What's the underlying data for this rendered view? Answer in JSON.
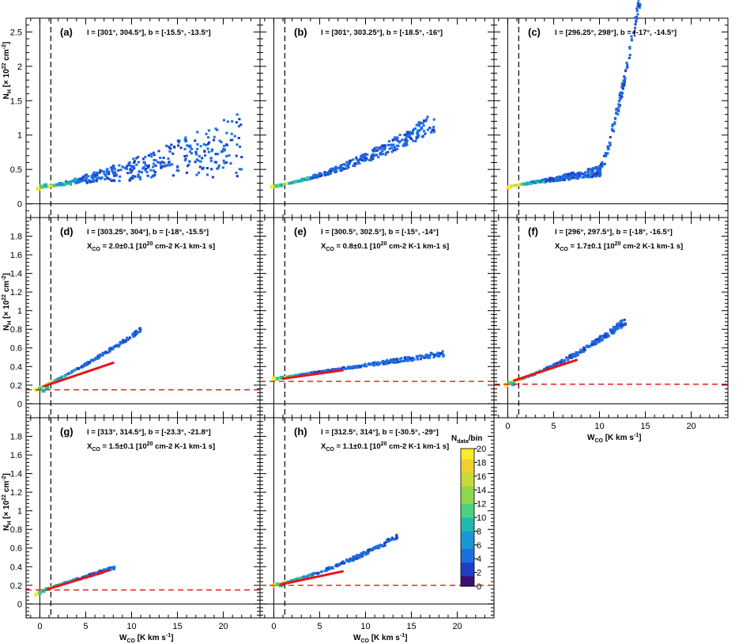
{
  "figure": {
    "y_title": "N_H [× 10^22 cm^-2]",
    "x_title": "W_CO [K km s^-1]",
    "y_title_parts": {
      "base": "N",
      "sub": "H",
      "mid": " [× 10",
      "sup": "22",
      "end": " cm",
      "sup2": "-2",
      "close": "]"
    },
    "x_title_parts": {
      "base": "W",
      "sub": "CO",
      "mid": " [K km s",
      "sup": "-1",
      "close": "]"
    }
  },
  "colorbar": {
    "title": "N_data/bin",
    "title_parts": {
      "base": "N",
      "sub": "data",
      "end": "/bin"
    },
    "range": [
      0,
      20
    ],
    "ticks": [
      "0",
      "2",
      "4",
      "6",
      "8",
      "10",
      "12",
      "14",
      "16",
      "18",
      "20"
    ],
    "colors": [
      "#3b0f70",
      "#1f3fc5",
      "#1d6fe0",
      "#1b96d4",
      "#1fb8b0",
      "#4ccf7f",
      "#8fd64d",
      "#c8d93a",
      "#f0cf2e",
      "#fce92a"
    ]
  },
  "chart_data": [
    {
      "id": "a",
      "type": "heatmap",
      "panel_label": "(a)",
      "range_text": "l = [301°, 304.5°],  b = [-15.5°, -13.5°]",
      "xlim": [
        -1.5,
        24
      ],
      "ylim": [
        -0.2,
        2.7
      ],
      "yticks": [
        "0",
        "0.5",
        "1",
        "1.5",
        "2",
        "2.5"
      ],
      "ytick_values": [
        0,
        0.5,
        1,
        1.5,
        2,
        2.5
      ],
      "xticks": [],
      "threshold_x": 1.2,
      "scatter": {
        "seed": 11,
        "n": 430,
        "x_max": 22,
        "base": 0.23,
        "slope": 0.022,
        "spread": 0.6,
        "spread_pow": 1.4,
        "curve": 0
      },
      "dense_core": [
        [
          -0.2,
          0.22
        ],
        [
          0.2,
          0.25
        ],
        [
          0.6,
          0.27
        ]
      ]
    },
    {
      "id": "b",
      "type": "heatmap",
      "panel_label": "(b)",
      "range_text": "l = [301°, 303.25°],  b = [-18.5°, -16°]",
      "xlim": [
        -1.5,
        24
      ],
      "ylim": [
        -0.2,
        2.7
      ],
      "yticks": [],
      "ytick_values": [
        0,
        0.5,
        1,
        1.5,
        2,
        2.5
      ],
      "xticks": [],
      "threshold_x": 1.2,
      "scatter": {
        "seed": 23,
        "n": 380,
        "x_max": 17.5,
        "base": 0.25,
        "slope": 0.025,
        "spread": 0.18,
        "spread_pow": 1.3,
        "curve": 0.0015
      },
      "dense_core": [
        [
          -0.2,
          0.25
        ],
        [
          0.3,
          0.26
        ],
        [
          0.8,
          0.27
        ]
      ]
    },
    {
      "id": "c",
      "type": "heatmap",
      "panel_label": "(c)",
      "range_text": "l = [296.25°, 298°],  b = [-17°, -14.5°]",
      "xlim": [
        -1.5,
        24
      ],
      "ylim": [
        -0.2,
        2.7
      ],
      "yticks": [],
      "ytick_values": [
        0,
        0.5,
        1,
        1.5,
        2,
        2.5
      ],
      "xticks": [],
      "threshold_x": 1.2,
      "scatter": {
        "seed": 37,
        "n": 420,
        "x_max": 15,
        "base": 0.25,
        "slope": 0.02,
        "spread": 0.15,
        "spread_pow": 1.2,
        "curve": 0,
        "rise_from": 10,
        "rise_rate": 0.35
      },
      "dense_core": [
        [
          0.2,
          0.24
        ]
      ]
    },
    {
      "id": "d",
      "type": "heatmap",
      "panel_label": "(d)",
      "range_text": "l = [303.25°, 304°],  b = [-18°, -15.5°]",
      "xco_text": "X_CO = 2.0±0.1 [10^20 cm^-2 K^-1 km^-1 s]",
      "xco_parts": {
        "base": "X",
        "sub": "CO",
        "val": " = 2.0±0.1 [10",
        "sup": "20",
        "unit": " cm-2 K-1 km-1 s]"
      },
      "xlim": [
        -1.5,
        24
      ],
      "ylim": [
        -0.15,
        2.0
      ],
      "yticks": [
        "0",
        "0.2",
        "0.4",
        "0.6",
        "0.8",
        "1",
        "1.2",
        "1.4",
        "1.6",
        "1.8"
      ],
      "ytick_values": [
        0,
        0.2,
        0.4,
        0.6,
        0.8,
        1.0,
        1.2,
        1.4,
        1.6,
        1.8
      ],
      "xticks": [],
      "threshold_x": 1.2,
      "offset_y": 0.15,
      "fit": {
        "x0": 0.5,
        "y0": 0.19,
        "x1": 8.0,
        "y1": 0.44
      },
      "scatter": {
        "seed": 41,
        "n": 210,
        "x_max": 11,
        "base": 0.17,
        "slope": 0.045,
        "spread": 0.05,
        "spread_pow": 1.0,
        "curve": 0.001
      },
      "dense_core": [
        [
          -0.4,
          0.15
        ],
        [
          0.0,
          0.16
        ],
        [
          0.4,
          0.14
        ],
        [
          0.8,
          0.17
        ]
      ]
    },
    {
      "id": "e",
      "type": "heatmap",
      "panel_label": "(e)",
      "range_text": "l = [300.5°, 302.5°],  b = [-15°, -14°]",
      "xco_text": "X_CO = 0.8±0.1 [10^20 cm^-2 K^-1 km^-1 s]",
      "xco_parts": {
        "base": "X",
        "sub": "CO",
        "val": " = 0.8±0.1 [10",
        "sup": "20",
        "unit": " cm-2 K-1 km-1 s]"
      },
      "xlim": [
        -1.5,
        24
      ],
      "ylim": [
        -0.15,
        2.0
      ],
      "yticks": [],
      "ytick_values": [
        0,
        0.2,
        0.4,
        0.6,
        0.8,
        1.0,
        1.2,
        1.4,
        1.6,
        1.8
      ],
      "xticks": [],
      "threshold_x": 1.2,
      "offset_y": 0.24,
      "fit": {
        "x0": 1.0,
        "y0": 0.27,
        "x1": 7.5,
        "y1": 0.36
      },
      "scatter": {
        "seed": 53,
        "n": 330,
        "x_max": 18.5,
        "base": 0.27,
        "slope": 0.014,
        "spread": 0.06,
        "spread_pow": 1.0,
        "curve": 0
      },
      "dense_core": [
        [
          0.0,
          0.27
        ],
        [
          0.4,
          0.27
        ],
        [
          0.9,
          0.28
        ]
      ]
    },
    {
      "id": "f",
      "type": "heatmap",
      "panel_label": "(f)",
      "range_text": "l = [296°, 297.5°],  b = [-18°, -16.5°]",
      "xco_text": "X_CO = 1.7±0.1 [10^20 cm^-2 K^-1 km^-1 s]",
      "xco_parts": {
        "base": "X",
        "sub": "CO",
        "val": " = 1.7±0.1 [10",
        "sup": "20",
        "unit": " cm-2 K-1 km-1 s]"
      },
      "xlim": [
        -1.5,
        24
      ],
      "ylim": [
        -0.15,
        2.0
      ],
      "yticks": [],
      "ytick_values": [
        0,
        0.2,
        0.4,
        0.6,
        0.8,
        1.0,
        1.2,
        1.4,
        1.6,
        1.8
      ],
      "xticks": [
        "0",
        "5",
        "10",
        "15",
        "20"
      ],
      "xtick_values": [
        0,
        5,
        10,
        15,
        20
      ],
      "show_xtitle": true,
      "threshold_x": 1.2,
      "offset_y": 0.21,
      "fit": {
        "x0": 0.7,
        "y0": 0.25,
        "x1": 7.5,
        "y1": 0.47
      },
      "scatter": {
        "seed": 67,
        "n": 260,
        "x_max": 13,
        "base": 0.22,
        "slope": 0.028,
        "spread": 0.08,
        "spread_pow": 1.0,
        "curve": 0.0018
      },
      "dense_core": [
        [
          -0.2,
          0.2
        ],
        [
          0.2,
          0.22
        ],
        [
          0.6,
          0.21
        ]
      ]
    },
    {
      "id": "g",
      "type": "heatmap",
      "panel_label": "(g)",
      "range_text": "l = [313°, 314.5°],  b = [-23.3°, -21.8°]",
      "xco_text": "X_CO = 1.5±0.1 [10^20 cm^-2 K^-1 km^-1 s]",
      "xco_parts": {
        "base": "X",
        "sub": "CO",
        "val": " = 1.5±0.1 [10",
        "sup": "20",
        "unit": " cm-2 K-1 km-1 s]"
      },
      "xlim": [
        -1.5,
        24
      ],
      "ylim": [
        -0.15,
        2.0
      ],
      "yticks": [
        "0",
        "0.2",
        "0.4",
        "0.6",
        "0.8",
        "1",
        "1.2",
        "1.4",
        "1.6",
        "1.8"
      ],
      "ytick_values": [
        0,
        0.2,
        0.4,
        0.6,
        0.8,
        1.0,
        1.2,
        1.4,
        1.6,
        1.8
      ],
      "xticks": [
        "0",
        "5",
        "10",
        "15",
        "20"
      ],
      "xtick_values": [
        0,
        5,
        10,
        15,
        20
      ],
      "show_xtitle": true,
      "threshold_x": 1.2,
      "offset_y": 0.15,
      "fit": {
        "x0": 0.9,
        "y0": 0.16,
        "x1": 7.5,
        "y1": 0.36
      },
      "scatter": {
        "seed": 79,
        "n": 190,
        "x_max": 8.2,
        "base": 0.14,
        "slope": 0.03,
        "spread": 0.04,
        "spread_pow": 1.0,
        "curve": 0
      },
      "dense_core": [
        [
          -0.4,
          0.1
        ],
        [
          0.0,
          0.12
        ],
        [
          0.4,
          0.14
        ],
        [
          0.8,
          0.16
        ]
      ]
    },
    {
      "id": "h",
      "type": "heatmap",
      "panel_label": "(h)",
      "range_text": "l = [312.5°, 314°],  b = [-30.5°, -29°]",
      "xco_text": "X_CO = 1.1±0.1 [10^20 cm^-2 K^-1 km^-1 s]",
      "xco_parts": {
        "base": "X",
        "sub": "CO",
        "val": " = 1.1±0.1 [10",
        "sup": "20",
        "unit": " cm-2 K-1 km-1 s]"
      },
      "xlim": [
        -1.5,
        24
      ],
      "ylim": [
        -0.15,
        2.0
      ],
      "yticks": [],
      "ytick_values": [
        0,
        0.2,
        0.4,
        0.6,
        0.8,
        1.0,
        1.2,
        1.4,
        1.6,
        1.8
      ],
      "xticks": [
        "0",
        "5",
        "10",
        "15",
        "20"
      ],
      "xtick_values": [
        0,
        5,
        10,
        15,
        20
      ],
      "show_xtitle": true,
      "threshold_x": 1.2,
      "offset_y": 0.2,
      "fit": {
        "x0": 0.8,
        "y0": 0.21,
        "x1": 7.5,
        "y1": 0.35
      },
      "scatter": {
        "seed": 83,
        "n": 230,
        "x_max": 13.5,
        "base": 0.2,
        "slope": 0.022,
        "spread": 0.06,
        "spread_pow": 1.0,
        "curve": 0.0012
      },
      "dense_core": [
        [
          0.0,
          0.2
        ],
        [
          0.4,
          0.21
        ],
        [
          0.8,
          0.2
        ]
      ]
    }
  ]
}
